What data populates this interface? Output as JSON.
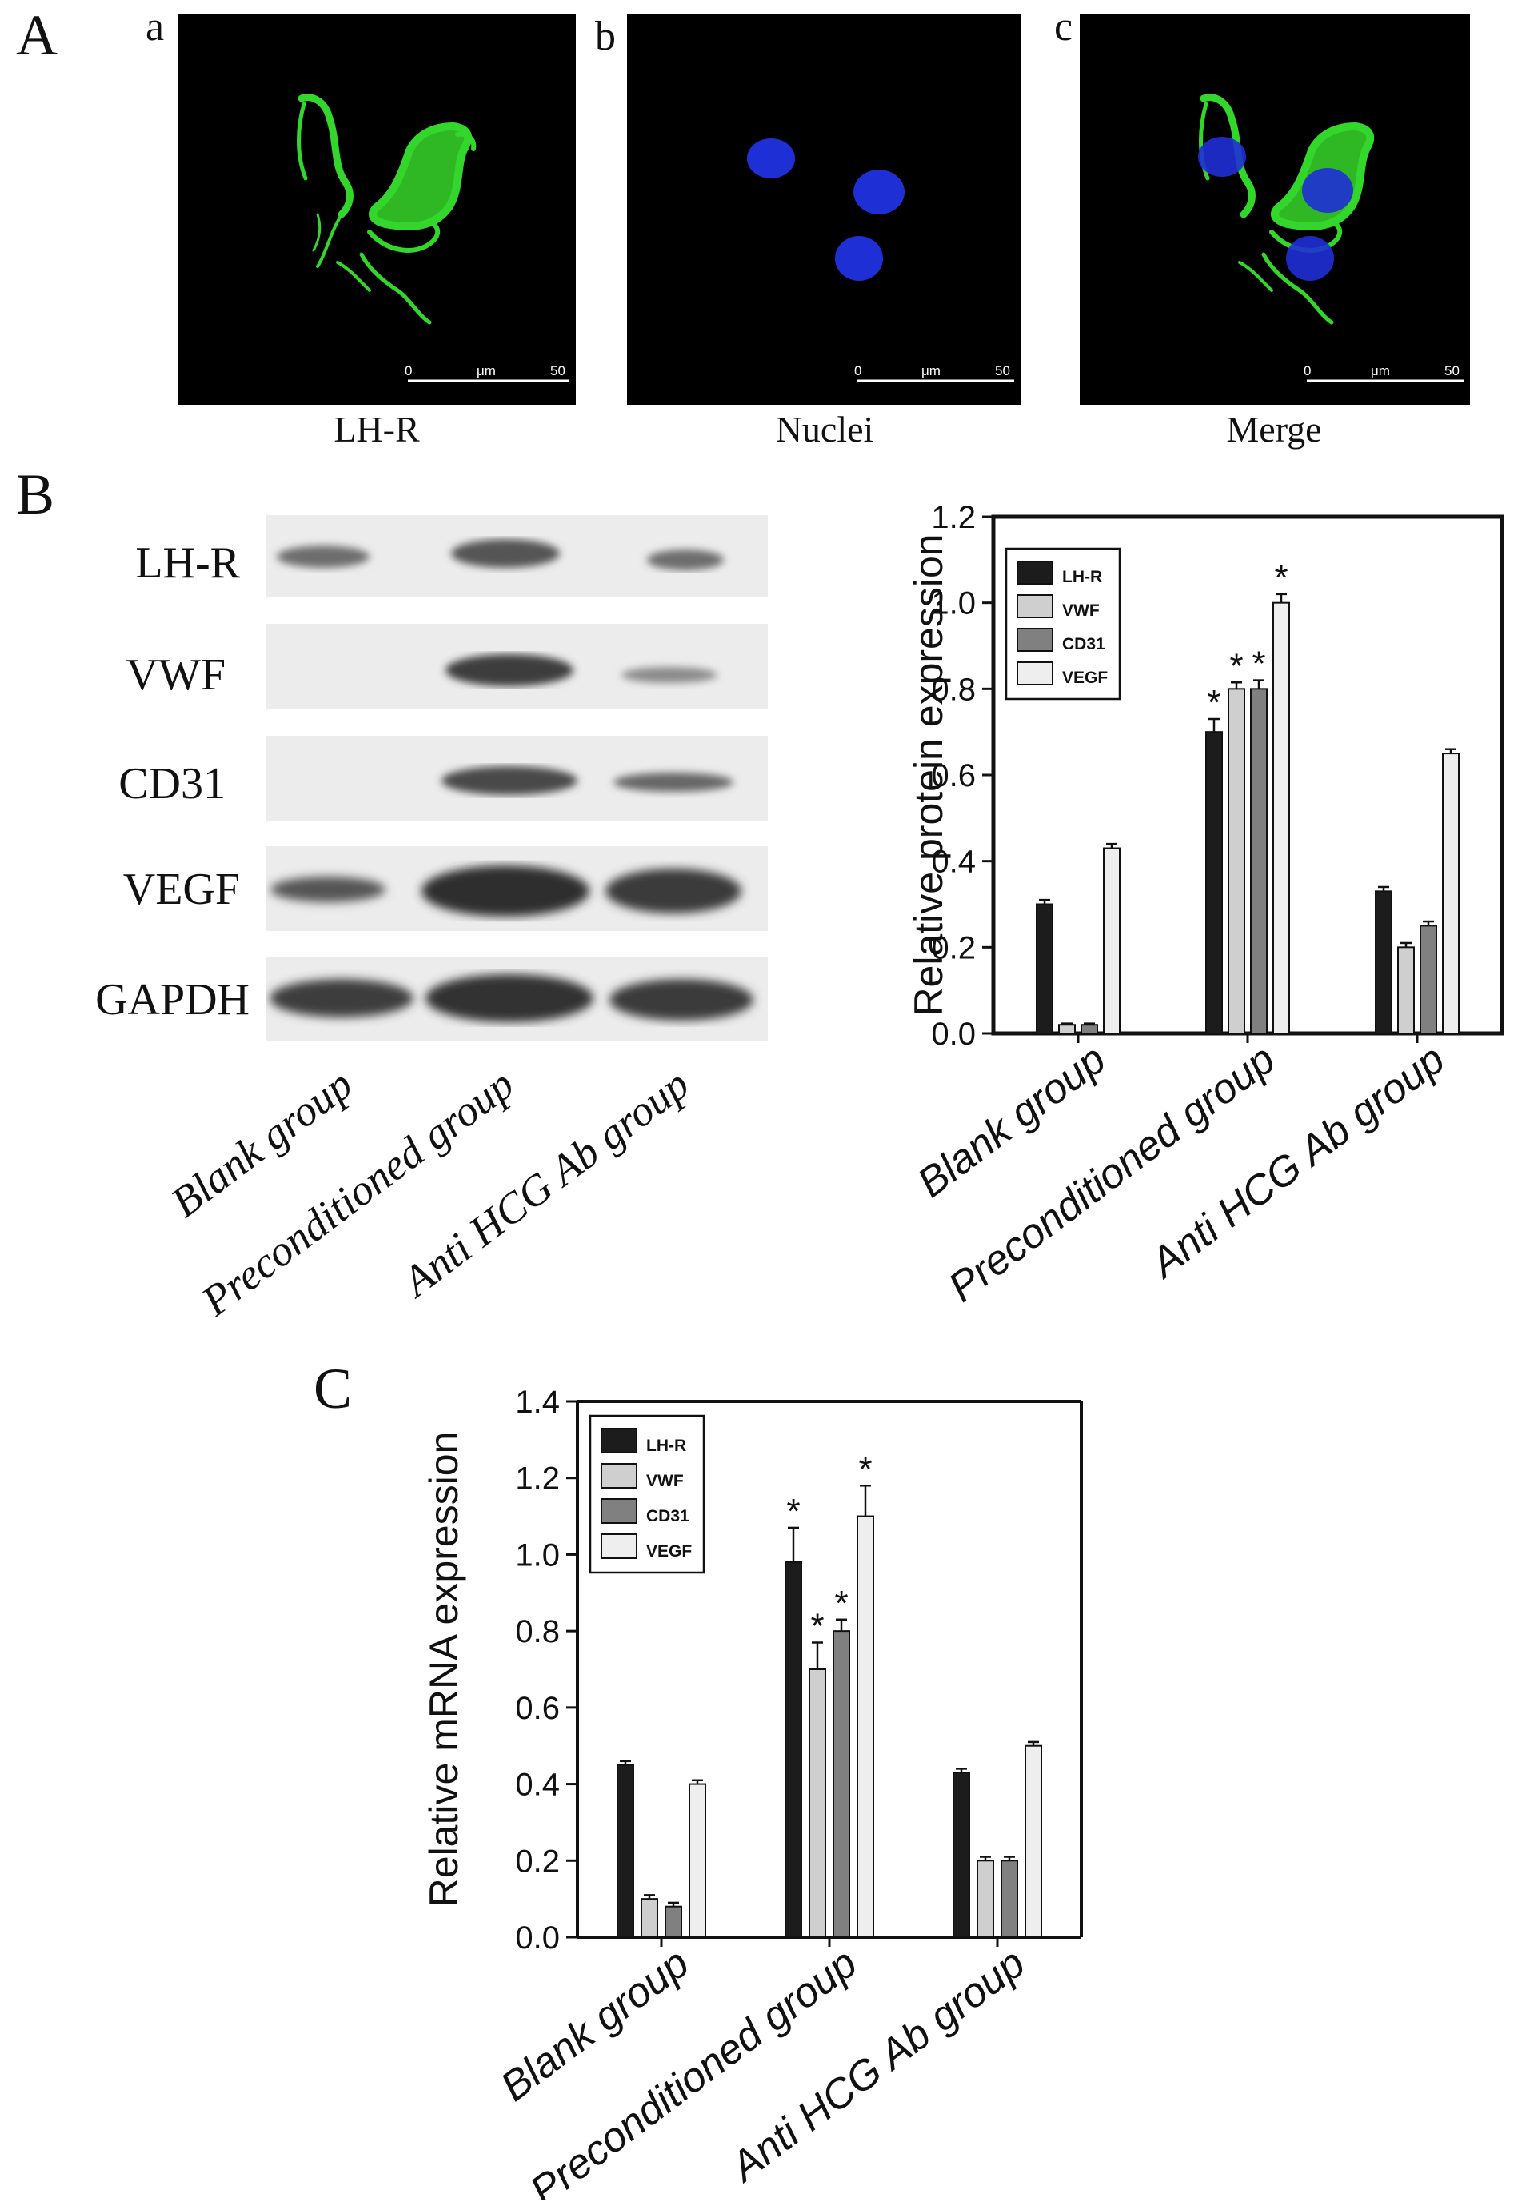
{
  "panels": {
    "A": {
      "label": "A",
      "images": [
        {
          "letter": "a",
          "caption": "LH-R",
          "scale_start": "0",
          "scale_unit": "μm",
          "scale_end": "50"
        },
        {
          "letter": "b",
          "caption": "Nuclei",
          "scale_start": "0",
          "scale_unit": "μm",
          "scale_end": "50"
        },
        {
          "letter": "c",
          "caption": "Merge",
          "scale_start": "0",
          "scale_unit": "μm",
          "scale_end": "50"
        }
      ]
    },
    "B": {
      "label": "B",
      "blot_rows": [
        "LH-R",
        "VWF",
        "CD31",
        "VEGF",
        "GAPDH"
      ],
      "groups": [
        "Blank group",
        "Preconditioned group",
        "Anti HCG Ab group"
      ]
    },
    "C": {
      "label": "C"
    }
  },
  "colors": {
    "LH-R": "#1c1c1c",
    "VWF": "#cfcfcf",
    "CD31": "#808080",
    "VEGF": "#eeeeee",
    "green": "#33d62a",
    "blue": "#1f2fd6"
  },
  "chart_data": [
    {
      "type": "bar",
      "categories": [
        "Blank group",
        "Preconditioned group",
        "Anti HCG Ab group"
      ],
      "ylabel": "Relative protein expression",
      "ylim": [
        0,
        1.2
      ],
      "yticks": [
        "0.0",
        "0.2",
        "0.4",
        "0.6",
        "0.8",
        "1.0",
        "1.2"
      ],
      "legend": "top-left",
      "series": [
        {
          "name": "LH-R",
          "values": [
            0.3,
            0.7,
            0.33
          ],
          "errors": [
            0.01,
            0.03,
            0.01
          ],
          "sig": [
            false,
            true,
            false
          ]
        },
        {
          "name": "VWF",
          "values": [
            0.02,
            0.8,
            0.2
          ],
          "errors": [
            0.003,
            0.015,
            0.01
          ],
          "sig": [
            false,
            true,
            false
          ]
        },
        {
          "name": "CD31",
          "values": [
            0.02,
            0.8,
            0.25
          ],
          "errors": [
            0.003,
            0.02,
            0.01
          ],
          "sig": [
            false,
            true,
            false
          ]
        },
        {
          "name": "VEGF",
          "values": [
            0.43,
            1.0,
            0.65
          ],
          "errors": [
            0.01,
            0.02,
            0.01
          ],
          "sig": [
            false,
            true,
            false
          ]
        }
      ],
      "sig_mark": "*"
    },
    {
      "type": "bar",
      "categories": [
        "Blank group",
        "Preconditioned group",
        "Anti HCG Ab group"
      ],
      "ylabel": "Relative mRNA expression",
      "ylim": [
        0,
        1.4
      ],
      "yticks": [
        "0.0",
        "0.2",
        "0.4",
        "0.6",
        "0.8",
        "1.0",
        "1.2",
        "1.4"
      ],
      "legend": "top-left",
      "series": [
        {
          "name": "LH-R",
          "values": [
            0.45,
            0.98,
            0.43
          ],
          "errors": [
            0.01,
            0.09,
            0.01
          ],
          "sig": [
            false,
            true,
            false
          ]
        },
        {
          "name": "VWF",
          "values": [
            0.1,
            0.7,
            0.2
          ],
          "errors": [
            0.01,
            0.07,
            0.01
          ],
          "sig": [
            false,
            true,
            false
          ]
        },
        {
          "name": "CD31",
          "values": [
            0.08,
            0.8,
            0.2
          ],
          "errors": [
            0.01,
            0.03,
            0.01
          ],
          "sig": [
            false,
            true,
            false
          ]
        },
        {
          "name": "VEGF",
          "values": [
            0.4,
            1.1,
            0.5
          ],
          "errors": [
            0.01,
            0.08,
            0.01
          ],
          "sig": [
            false,
            true,
            false
          ]
        }
      ],
      "sig_mark": "*"
    }
  ]
}
